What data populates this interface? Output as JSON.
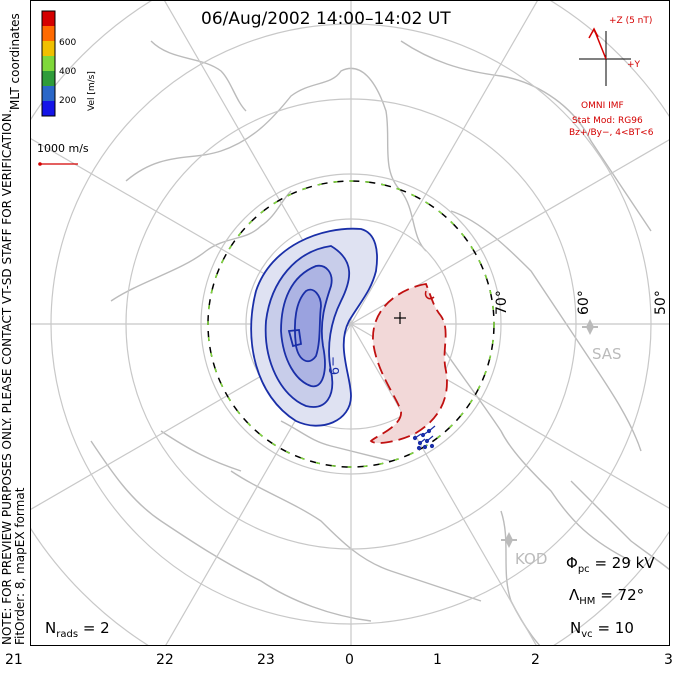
{
  "title": "06/Aug/2002 14:00–14:02 UT",
  "side_left": "NOTE: FOR PREVIEW PURPOSES ONLY. PLEASE CONTACT VT-SD STAFF FOR VERIFICATION.",
  "side_left2": "FitOrder: 8, mapEX format",
  "side_right_top": "MLT coordinates",
  "colorbar": {
    "title": "Vel [m/s]",
    "ticks": [
      "600",
      "400",
      "200"
    ],
    "colors": [
      "#d40000",
      "#ff6a00",
      "#f0c000",
      "#7fd83a",
      "#2f9c3a",
      "#2a67c8",
      "#1515e8"
    ]
  },
  "vector_scale": "1000 m/s",
  "imf": {
    "z_label": "+Z (5 nT)",
    "y_label": "+Y",
    "source": "OMNI IMF",
    "model": "Stat Mod: RG96",
    "condition": "Bz+/By−, 4<BT<6"
  },
  "latitudes": [
    "70°",
    "60°",
    "50°"
  ],
  "stations": [
    "SAS",
    "KOD"
  ],
  "contour_label": "−9",
  "phi_pc": {
    "symbol": "Φ",
    "sub": "pc",
    "value": "= 29 kV"
  },
  "lambda_hm": {
    "symbol": "Λ",
    "sub": "HM",
    "value": "= 72°"
  },
  "n_vc": {
    "symbol": "N",
    "sub": "vc",
    "value": "= 10"
  },
  "n_rads": {
    "symbol": "N",
    "sub": "rads",
    "value": "= 2"
  },
  "mlt_ticks": [
    "21",
    "22",
    "23",
    "0",
    "1",
    "2",
    "3"
  ]
}
